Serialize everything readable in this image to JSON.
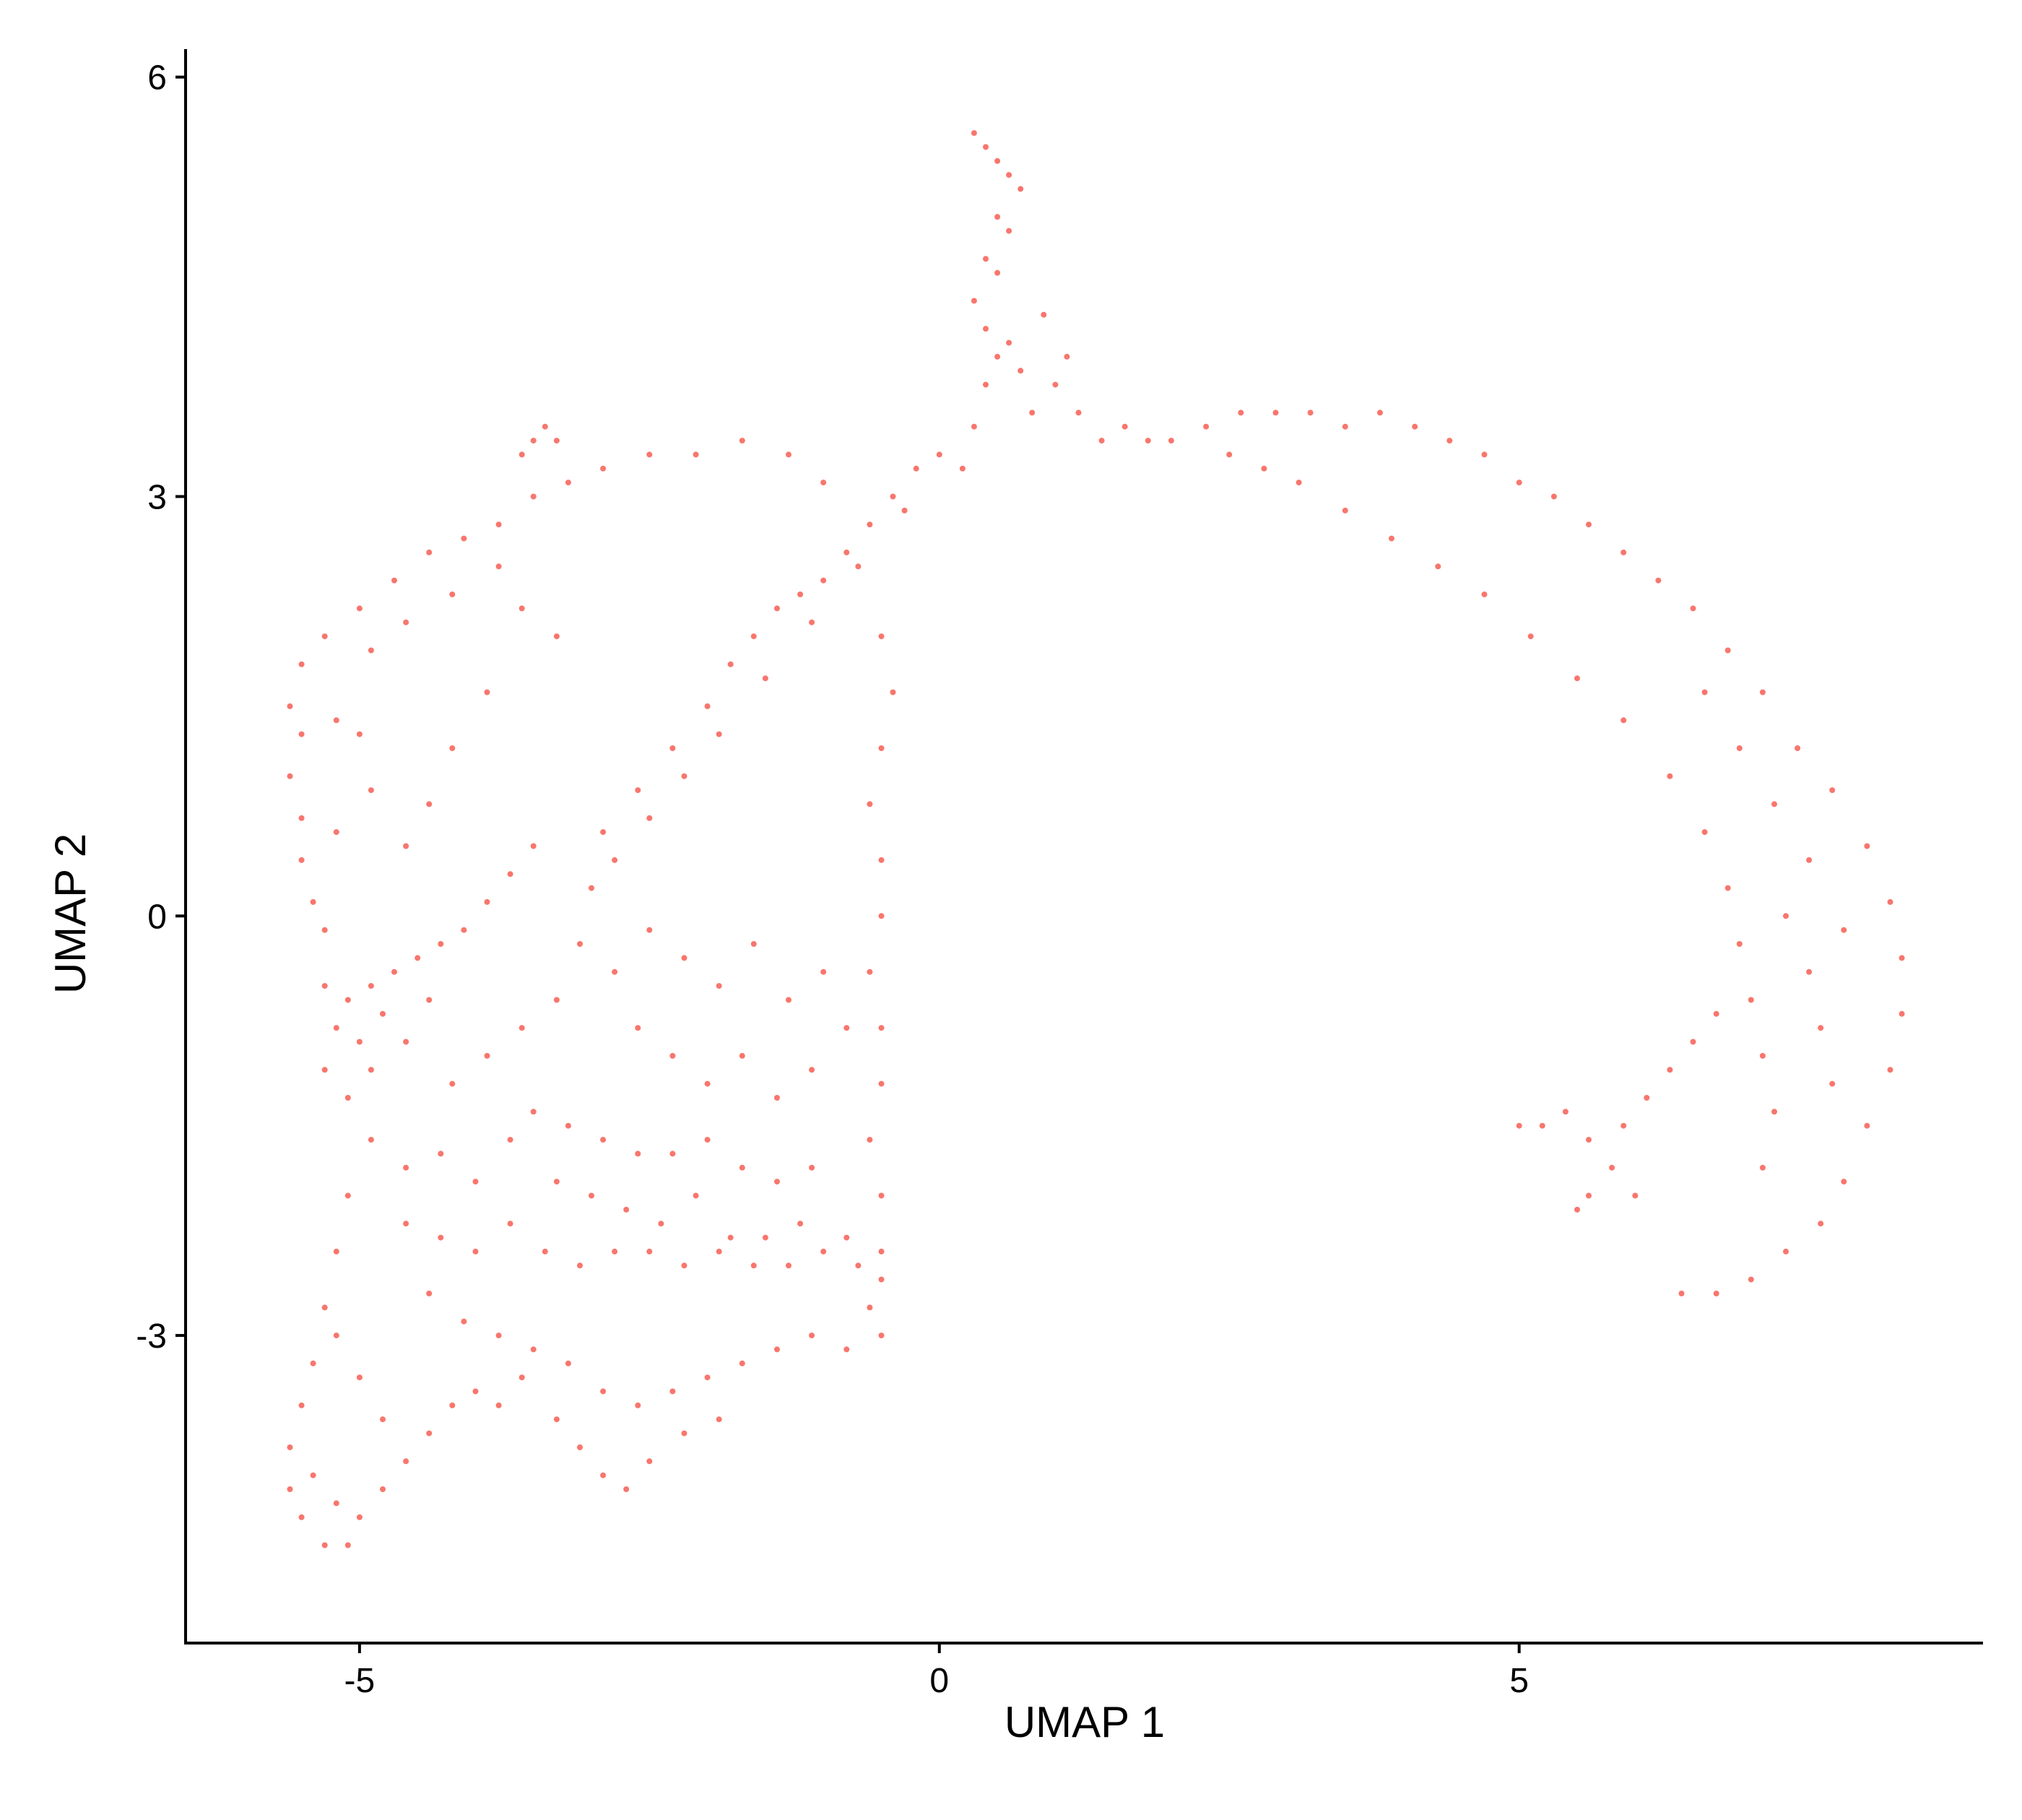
{
  "chart_data": {
    "type": "scatter",
    "title": "",
    "xlabel": "UMAP 1",
    "ylabel": "UMAP 2",
    "xlim": [
      -6.5,
      9
    ],
    "ylim": [
      -5.2,
      6.2
    ],
    "xticks": [
      {
        "value": -5,
        "label": "-5"
      },
      {
        "value": 0,
        "label": "0"
      },
      {
        "value": 5,
        "label": "5"
      }
    ],
    "yticks": [
      {
        "value": 6,
        "label": "6"
      },
      {
        "value": 3,
        "label": "3"
      },
      {
        "value": 0,
        "label": "0"
      },
      {
        "value": -3,
        "label": "-3"
      }
    ],
    "grid": false,
    "legend": "none",
    "point_color": "#F8766D",
    "series": [
      {
        "points": [
          [
            -5.6,
            1.5
          ],
          [
            -5.5,
            1.8
          ],
          [
            -5.3,
            2.0
          ],
          [
            -5.0,
            2.2
          ],
          [
            -4.7,
            2.4
          ],
          [
            -4.4,
            2.6
          ],
          [
            -4.1,
            2.7
          ],
          [
            -3.8,
            2.8
          ],
          [
            -3.5,
            3.0
          ],
          [
            -3.2,
            3.1
          ],
          [
            -2.9,
            3.2
          ],
          [
            -2.5,
            3.3
          ],
          [
            -2.1,
            3.3
          ],
          [
            -1.7,
            3.4
          ],
          [
            -1.3,
            3.3
          ],
          [
            -1.0,
            3.1
          ],
          [
            -3.4,
            3.5
          ],
          [
            -3.5,
            3.4
          ],
          [
            -3.3,
            3.4
          ],
          [
            -3.6,
            3.3
          ],
          [
            -5.6,
            1.0
          ],
          [
            -5.5,
            0.7
          ],
          [
            -5.5,
            0.4
          ],
          [
            -5.4,
            0.1
          ],
          [
            -5.3,
            -0.1
          ],
          [
            -5.5,
            1.3
          ],
          [
            -5.2,
            1.4
          ],
          [
            -4.9,
            1.9
          ],
          [
            -4.6,
            2.1
          ],
          [
            -4.2,
            2.3
          ],
          [
            -3.8,
            2.5
          ],
          [
            -3.6,
            2.2
          ],
          [
            -3.3,
            2.0
          ],
          [
            -3.9,
            1.6
          ],
          [
            -4.2,
            1.2
          ],
          [
            -4.4,
            0.8
          ],
          [
            -4.6,
            0.5
          ],
          [
            -4.9,
            0.9
          ],
          [
            -5.0,
            1.3
          ],
          [
            -5.2,
            0.6
          ],
          [
            -5.3,
            -0.5
          ],
          [
            -5.1,
            -0.6
          ],
          [
            -4.9,
            -0.5
          ],
          [
            -4.7,
            -0.4
          ],
          [
            -4.5,
            -0.3
          ],
          [
            -4.3,
            -0.2
          ],
          [
            -4.1,
            -0.1
          ],
          [
            -3.9,
            0.1
          ],
          [
            -3.7,
            0.3
          ],
          [
            -3.5,
            0.5
          ],
          [
            -5.2,
            -0.8
          ],
          [
            -5.0,
            -0.9
          ],
          [
            -4.8,
            -0.7
          ],
          [
            -5.3,
            -1.1
          ],
          [
            -5.1,
            -1.3
          ],
          [
            -4.9,
            -1.1
          ],
          [
            -4.6,
            -0.9
          ],
          [
            -4.4,
            -0.6
          ],
          [
            -2.9,
            0.6
          ],
          [
            -2.6,
            0.9
          ],
          [
            -2.3,
            1.2
          ],
          [
            -2.0,
            1.5
          ],
          [
            -1.8,
            1.8
          ],
          [
            -1.6,
            2.0
          ],
          [
            -1.4,
            2.2
          ],
          [
            -1.2,
            2.3
          ],
          [
            -1.0,
            2.4
          ],
          [
            -0.8,
            2.6
          ],
          [
            -0.6,
            2.8
          ],
          [
            -0.4,
            3.0
          ],
          [
            -0.2,
            3.2
          ],
          [
            0.0,
            3.3
          ],
          [
            -0.3,
            2.9
          ],
          [
            -0.7,
            2.5
          ],
          [
            -1.1,
            2.1
          ],
          [
            -1.5,
            1.7
          ],
          [
            -1.9,
            1.3
          ],
          [
            -2.2,
            1.0
          ],
          [
            -2.5,
            0.7
          ],
          [
            -2.8,
            0.4
          ],
          [
            -3.0,
            0.2
          ],
          [
            -0.5,
            2.0
          ],
          [
            -0.4,
            1.6
          ],
          [
            -0.5,
            1.2
          ],
          [
            -0.6,
            0.8
          ],
          [
            -0.5,
            0.4
          ],
          [
            -0.5,
            0.0
          ],
          [
            -0.6,
            -0.4
          ],
          [
            -0.5,
            -0.8
          ],
          [
            -0.5,
            -1.2
          ],
          [
            -0.6,
            -1.6
          ],
          [
            -0.5,
            -2.0
          ],
          [
            -0.5,
            -2.4
          ],
          [
            -0.6,
            -2.8
          ],
          [
            -0.5,
            -3.0
          ],
          [
            -3.1,
            -0.2
          ],
          [
            -2.8,
            -0.4
          ],
          [
            -2.5,
            -0.1
          ],
          [
            -2.2,
            -0.3
          ],
          [
            -1.9,
            -0.5
          ],
          [
            -1.6,
            -0.2
          ],
          [
            -1.3,
            -0.6
          ],
          [
            -1.0,
            -0.4
          ],
          [
            -0.8,
            -0.8
          ],
          [
            -2.6,
            -0.8
          ],
          [
            -2.3,
            -1.0
          ],
          [
            -2.0,
            -1.2
          ],
          [
            -1.7,
            -1.0
          ],
          [
            -1.4,
            -1.3
          ],
          [
            -1.1,
            -1.1
          ],
          [
            -3.5,
            -1.4
          ],
          [
            -3.2,
            -1.5
          ],
          [
            -2.9,
            -1.6
          ],
          [
            -2.6,
            -1.7
          ],
          [
            -2.3,
            -1.7
          ],
          [
            -2.0,
            -1.6
          ],
          [
            -1.7,
            -1.8
          ],
          [
            -1.4,
            -1.9
          ],
          [
            -1.1,
            -1.8
          ],
          [
            -3.3,
            -1.9
          ],
          [
            -3.0,
            -2.0
          ],
          [
            -2.7,
            -2.1
          ],
          [
            -2.4,
            -2.2
          ],
          [
            -2.1,
            -2.0
          ],
          [
            -1.8,
            -2.3
          ],
          [
            -4.6,
            -2.2
          ],
          [
            -4.3,
            -2.3
          ],
          [
            -4.0,
            -2.4
          ],
          [
            -3.7,
            -2.2
          ],
          [
            -3.4,
            -2.4
          ],
          [
            -3.1,
            -2.5
          ],
          [
            -2.8,
            -2.4
          ],
          [
            -2.5,
            -2.4
          ],
          [
            -2.2,
            -2.5
          ],
          [
            -1.9,
            -2.4
          ],
          [
            -1.6,
            -2.5
          ],
          [
            -1.3,
            -2.5
          ],
          [
            -1.0,
            -2.4
          ],
          [
            -0.7,
            -2.5
          ],
          [
            -0.5,
            -2.6
          ],
          [
            -0.8,
            -2.3
          ],
          [
            -1.2,
            -2.2
          ],
          [
            -1.5,
            -2.3
          ],
          [
            -4.9,
            -1.6
          ],
          [
            -4.6,
            -1.8
          ],
          [
            -4.3,
            -1.7
          ],
          [
            -4.0,
            -1.9
          ],
          [
            -3.7,
            -1.6
          ],
          [
            -4.2,
            -1.2
          ],
          [
            -3.9,
            -1.0
          ],
          [
            -3.6,
            -0.8
          ],
          [
            -3.3,
            -0.6
          ],
          [
            -4.4,
            -2.7
          ],
          [
            -4.1,
            -2.9
          ],
          [
            -3.8,
            -3.0
          ],
          [
            -3.5,
            -3.1
          ],
          [
            -3.2,
            -3.2
          ],
          [
            -2.9,
            -3.4
          ],
          [
            -2.6,
            -3.5
          ],
          [
            -2.3,
            -3.4
          ],
          [
            -2.0,
            -3.3
          ],
          [
            -1.7,
            -3.2
          ],
          [
            -1.4,
            -3.1
          ],
          [
            -1.1,
            -3.0
          ],
          [
            -0.8,
            -3.1
          ],
          [
            -3.6,
            -3.3
          ],
          [
            -3.3,
            -3.6
          ],
          [
            -3.1,
            -3.8
          ],
          [
            -2.9,
            -4.0
          ],
          [
            -2.7,
            -4.1
          ],
          [
            -2.5,
            -3.9
          ],
          [
            -2.2,
            -3.7
          ],
          [
            -1.9,
            -3.6
          ],
          [
            -5.1,
            -2.0
          ],
          [
            -5.2,
            -2.4
          ],
          [
            -5.3,
            -2.8
          ],
          [
            -5.4,
            -3.2
          ],
          [
            -5.5,
            -3.5
          ],
          [
            -5.6,
            -3.8
          ],
          [
            -5.6,
            -4.1
          ],
          [
            -5.5,
            -4.3
          ],
          [
            -5.3,
            -4.5
          ],
          [
            -5.1,
            -4.5
          ],
          [
            -5.0,
            -4.3
          ],
          [
            -4.8,
            -4.1
          ],
          [
            -4.6,
            -3.9
          ],
          [
            -4.4,
            -3.7
          ],
          [
            -4.2,
            -3.5
          ],
          [
            -4.0,
            -3.4
          ],
          [
            -3.8,
            -3.5
          ],
          [
            -5.2,
            -3.0
          ],
          [
            -5.0,
            -3.3
          ],
          [
            -4.8,
            -3.6
          ],
          [
            -5.4,
            -4.0
          ],
          [
            -5.2,
            -4.2
          ],
          [
            0.2,
            3.2
          ],
          [
            0.3,
            3.5
          ],
          [
            0.4,
            3.8
          ],
          [
            0.5,
            4.0
          ],
          [
            0.4,
            4.2
          ],
          [
            0.6,
            4.1
          ],
          [
            0.3,
            4.4
          ],
          [
            0.4,
            4.7
          ],
          [
            0.5,
            5.0
          ],
          [
            0.6,
            5.3
          ],
          [
            0.4,
            5.5
          ],
          [
            0.3,
            5.6
          ],
          [
            0.5,
            5.4
          ],
          [
            0.7,
            5.2
          ],
          [
            0.6,
            4.9
          ],
          [
            0.5,
            4.6
          ],
          [
            0.7,
            3.9
          ],
          [
            0.8,
            3.6
          ],
          [
            1.0,
            3.8
          ],
          [
            1.2,
            3.6
          ],
          [
            1.4,
            3.4
          ],
          [
            1.6,
            3.5
          ],
          [
            1.8,
            3.4
          ],
          [
            0.9,
            4.3
          ],
          [
            1.1,
            4.0
          ],
          [
            2.0,
            3.4
          ],
          [
            2.3,
            3.5
          ],
          [
            2.6,
            3.6
          ],
          [
            2.9,
            3.6
          ],
          [
            3.2,
            3.6
          ],
          [
            3.5,
            3.5
          ],
          [
            3.8,
            3.6
          ],
          [
            4.1,
            3.5
          ],
          [
            4.4,
            3.4
          ],
          [
            4.7,
            3.3
          ],
          [
            5.0,
            3.1
          ],
          [
            5.3,
            3.0
          ],
          [
            5.6,
            2.8
          ],
          [
            5.9,
            2.6
          ],
          [
            6.2,
            2.4
          ],
          [
            6.5,
            2.2
          ],
          [
            6.8,
            1.9
          ],
          [
            7.1,
            1.6
          ],
          [
            7.4,
            1.2
          ],
          [
            7.7,
            0.9
          ],
          [
            8.0,
            0.5
          ],
          [
            8.2,
            0.1
          ],
          [
            8.3,
            -0.3
          ],
          [
            8.3,
            -0.7
          ],
          [
            8.2,
            -1.1
          ],
          [
            8.0,
            -1.5
          ],
          [
            7.8,
            -1.9
          ],
          [
            7.6,
            -2.2
          ],
          [
            7.3,
            -2.4
          ],
          [
            7.0,
            -2.6
          ],
          [
            6.7,
            -2.7
          ],
          [
            6.4,
            -2.7
          ],
          [
            2.5,
            3.3
          ],
          [
            2.8,
            3.2
          ],
          [
            3.1,
            3.1
          ],
          [
            3.5,
            2.9
          ],
          [
            3.9,
            2.7
          ],
          [
            4.3,
            2.5
          ],
          [
            4.7,
            2.3
          ],
          [
            5.1,
            2.0
          ],
          [
            5.5,
            1.7
          ],
          [
            5.9,
            1.4
          ],
          [
            6.3,
            1.0
          ],
          [
            6.6,
            0.6
          ],
          [
            6.8,
            0.2
          ],
          [
            6.9,
            -0.2
          ],
          [
            7.0,
            -0.6
          ],
          [
            7.1,
            -1.0
          ],
          [
            7.2,
            -1.4
          ],
          [
            7.1,
            -1.8
          ],
          [
            7.3,
            0.0
          ],
          [
            7.5,
            -0.4
          ],
          [
            7.6,
            -0.8
          ],
          [
            7.7,
            -1.2
          ],
          [
            7.5,
            0.4
          ],
          [
            7.2,
            0.8
          ],
          [
            6.9,
            1.2
          ],
          [
            6.6,
            1.6
          ],
          [
            7.8,
            -0.1
          ],
          [
            5.4,
            -1.4
          ],
          [
            5.6,
            -1.6
          ],
          [
            5.8,
            -1.8
          ],
          [
            5.6,
            -2.0
          ],
          [
            5.5,
            -2.1
          ],
          [
            5.9,
            -1.5
          ],
          [
            6.1,
            -1.3
          ],
          [
            6.3,
            -1.1
          ],
          [
            6.5,
            -0.9
          ],
          [
            6.7,
            -0.7
          ],
          [
            5.2,
            -1.5
          ],
          [
            5.0,
            -1.5
          ],
          [
            6.0,
            -2.0
          ]
        ]
      }
    ]
  }
}
